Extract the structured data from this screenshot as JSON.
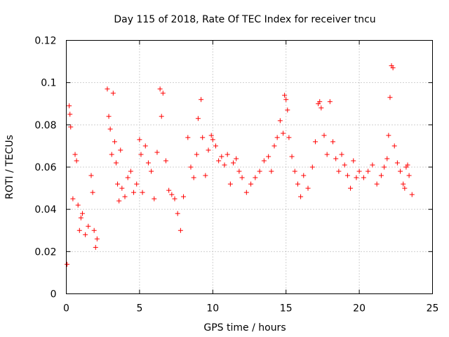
{
  "chart_data": {
    "type": "scatter",
    "title": "Day 115 of 2018, Rate Of TEC Index for receiver tncu",
    "xlabel": "GPS time / hours",
    "ylabel": "ROTI / TECUs",
    "xlim": [
      0,
      25
    ],
    "ylim": [
      0,
      0.12
    ],
    "x_ticks": [
      0,
      5,
      10,
      15,
      20,
      25
    ],
    "x_tick_labels": [
      "0",
      "5",
      "10",
      "15",
      "20",
      "25"
    ],
    "y_ticks": [
      0,
      0.02,
      0.04,
      0.06,
      0.08,
      0.1,
      0.12
    ],
    "y_tick_labels": [
      "0",
      "0.02",
      "0.04",
      "0.06",
      "0.08",
      "0.1",
      "0.12"
    ],
    "grid": true,
    "marker": "+",
    "series": [
      {
        "name": "ROTI",
        "color": "#ff0000",
        "x": [
          0.05,
          0.2,
          0.25,
          0.3,
          0.45,
          0.6,
          0.7,
          0.8,
          0.9,
          1.0,
          1.1,
          1.3,
          1.5,
          1.7,
          1.8,
          1.9,
          2.0,
          2.1,
          2.8,
          2.9,
          3.0,
          3.1,
          3.2,
          3.3,
          3.4,
          3.5,
          3.6,
          3.7,
          3.8,
          4.0,
          4.2,
          4.4,
          4.6,
          4.8,
          5.0,
          5.1,
          5.2,
          5.4,
          5.6,
          5.8,
          6.0,
          6.2,
          6.4,
          6.5,
          6.6,
          6.8,
          7.0,
          7.2,
          7.4,
          7.6,
          7.8,
          8.0,
          8.3,
          8.5,
          8.7,
          8.9,
          9.0,
          9.2,
          9.3,
          9.5,
          9.7,
          9.9,
          10.0,
          10.2,
          10.4,
          10.6,
          10.8,
          11.0,
          11.2,
          11.4,
          11.6,
          11.8,
          12.0,
          12.3,
          12.6,
          12.9,
          13.2,
          13.5,
          13.8,
          14.0,
          14.2,
          14.4,
          14.6,
          14.8,
          14.9,
          15.0,
          15.1,
          15.2,
          15.4,
          15.6,
          15.8,
          16.0,
          16.2,
          16.5,
          16.8,
          17.0,
          17.2,
          17.3,
          17.4,
          17.6,
          17.8,
          18.0,
          18.2,
          18.4,
          18.6,
          18.8,
          19.0,
          19.2,
          19.4,
          19.6,
          19.8,
          20.0,
          20.3,
          20.6,
          20.9,
          21.2,
          21.5,
          21.7,
          21.9,
          22.0,
          22.1,
          22.2,
          22.3,
          22.4,
          22.6,
          22.8,
          23.0,
          23.1,
          23.2,
          23.3,
          23.4,
          23.6
        ],
        "y": [
          0.014,
          0.089,
          0.085,
          0.079,
          0.045,
          0.066,
          0.063,
          0.042,
          0.03,
          0.036,
          0.038,
          0.028,
          0.032,
          0.056,
          0.048,
          0.03,
          0.022,
          0.026,
          0.097,
          0.084,
          0.078,
          0.066,
          0.095,
          0.072,
          0.062,
          0.052,
          0.044,
          0.068,
          0.05,
          0.046,
          0.055,
          0.058,
          0.048,
          0.052,
          0.073,
          0.066,
          0.048,
          0.07,
          0.062,
          0.058,
          0.045,
          0.067,
          0.097,
          0.084,
          0.095,
          0.063,
          0.049,
          0.047,
          0.045,
          0.038,
          0.03,
          0.046,
          0.074,
          0.06,
          0.055,
          0.066,
          0.083,
          0.092,
          0.074,
          0.056,
          0.068,
          0.075,
          0.073,
          0.07,
          0.063,
          0.065,
          0.061,
          0.066,
          0.052,
          0.062,
          0.064,
          0.058,
          0.055,
          0.048,
          0.052,
          0.055,
          0.058,
          0.063,
          0.065,
          0.058,
          0.07,
          0.074,
          0.082,
          0.076,
          0.094,
          0.092,
          0.087,
          0.074,
          0.065,
          0.058,
          0.052,
          0.046,
          0.056,
          0.05,
          0.06,
          0.072,
          0.09,
          0.091,
          0.088,
          0.075,
          0.066,
          0.091,
          0.072,
          0.064,
          0.058,
          0.066,
          0.061,
          0.056,
          0.05,
          0.063,
          0.055,
          0.058,
          0.055,
          0.058,
          0.061,
          0.052,
          0.056,
          0.06,
          0.064,
          0.075,
          0.093,
          0.108,
          0.107,
          0.07,
          0.062,
          0.058,
          0.052,
          0.05,
          0.06,
          0.061,
          0.056,
          0.047
        ]
      }
    ]
  }
}
